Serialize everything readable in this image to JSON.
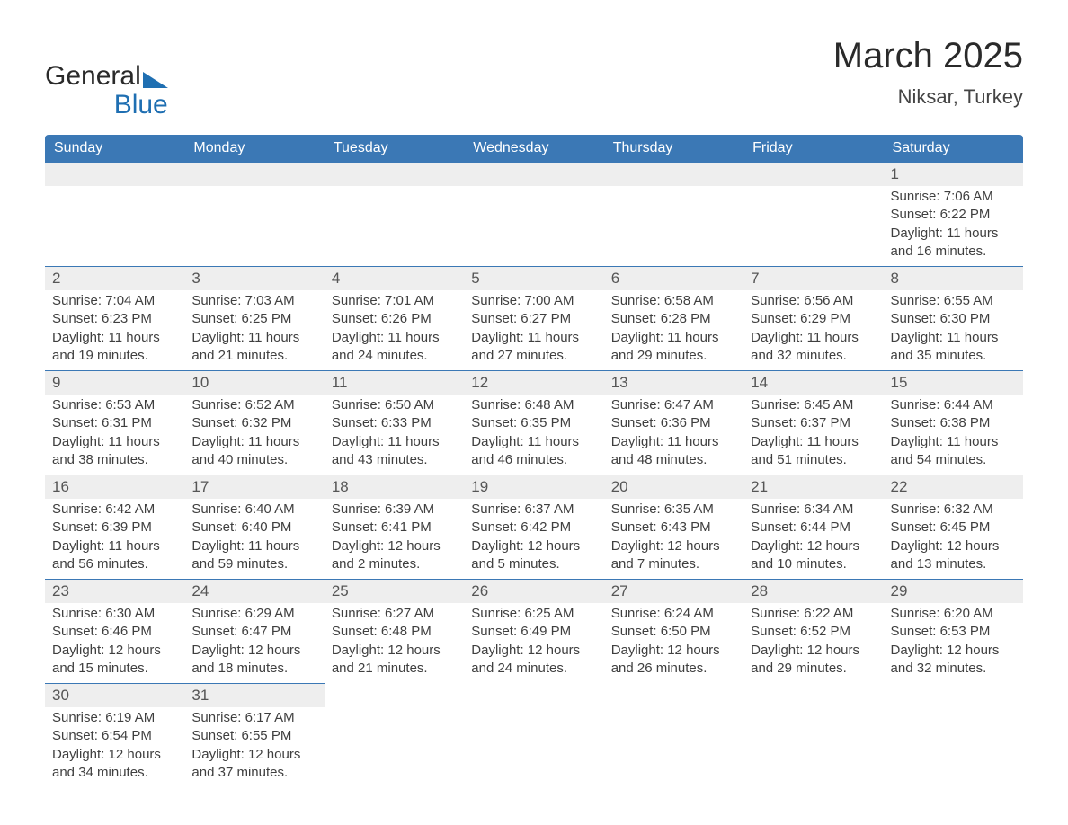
{
  "logo": {
    "word1": "General",
    "word2": "Blue",
    "tri_color": "#1f6fb2"
  },
  "title": "March 2025",
  "location": "Niksar, Turkey",
  "header_bg": "#3b78b5",
  "day_headers": [
    "Sunday",
    "Monday",
    "Tuesday",
    "Wednesday",
    "Thursday",
    "Friday",
    "Saturday"
  ],
  "weeks": [
    [
      null,
      null,
      null,
      null,
      null,
      null,
      {
        "n": "1",
        "sunrise": "7:06 AM",
        "sunset": "6:22 PM",
        "dl": "11 hours and 16 minutes."
      }
    ],
    [
      {
        "n": "2",
        "sunrise": "7:04 AM",
        "sunset": "6:23 PM",
        "dl": "11 hours and 19 minutes."
      },
      {
        "n": "3",
        "sunrise": "7:03 AM",
        "sunset": "6:25 PM",
        "dl": "11 hours and 21 minutes."
      },
      {
        "n": "4",
        "sunrise": "7:01 AM",
        "sunset": "6:26 PM",
        "dl": "11 hours and 24 minutes."
      },
      {
        "n": "5",
        "sunrise": "7:00 AM",
        "sunset": "6:27 PM",
        "dl": "11 hours and 27 minutes."
      },
      {
        "n": "6",
        "sunrise": "6:58 AM",
        "sunset": "6:28 PM",
        "dl": "11 hours and 29 minutes."
      },
      {
        "n": "7",
        "sunrise": "6:56 AM",
        "sunset": "6:29 PM",
        "dl": "11 hours and 32 minutes."
      },
      {
        "n": "8",
        "sunrise": "6:55 AM",
        "sunset": "6:30 PM",
        "dl": "11 hours and 35 minutes."
      }
    ],
    [
      {
        "n": "9",
        "sunrise": "6:53 AM",
        "sunset": "6:31 PM",
        "dl": "11 hours and 38 minutes."
      },
      {
        "n": "10",
        "sunrise": "6:52 AM",
        "sunset": "6:32 PM",
        "dl": "11 hours and 40 minutes."
      },
      {
        "n": "11",
        "sunrise": "6:50 AM",
        "sunset": "6:33 PM",
        "dl": "11 hours and 43 minutes."
      },
      {
        "n": "12",
        "sunrise": "6:48 AM",
        "sunset": "6:35 PM",
        "dl": "11 hours and 46 minutes."
      },
      {
        "n": "13",
        "sunrise": "6:47 AM",
        "sunset": "6:36 PM",
        "dl": "11 hours and 48 minutes."
      },
      {
        "n": "14",
        "sunrise": "6:45 AM",
        "sunset": "6:37 PM",
        "dl": "11 hours and 51 minutes."
      },
      {
        "n": "15",
        "sunrise": "6:44 AM",
        "sunset": "6:38 PM",
        "dl": "11 hours and 54 minutes."
      }
    ],
    [
      {
        "n": "16",
        "sunrise": "6:42 AM",
        "sunset": "6:39 PM",
        "dl": "11 hours and 56 minutes."
      },
      {
        "n": "17",
        "sunrise": "6:40 AM",
        "sunset": "6:40 PM",
        "dl": "11 hours and 59 minutes."
      },
      {
        "n": "18",
        "sunrise": "6:39 AM",
        "sunset": "6:41 PM",
        "dl": "12 hours and 2 minutes."
      },
      {
        "n": "19",
        "sunrise": "6:37 AM",
        "sunset": "6:42 PM",
        "dl": "12 hours and 5 minutes."
      },
      {
        "n": "20",
        "sunrise": "6:35 AM",
        "sunset": "6:43 PM",
        "dl": "12 hours and 7 minutes."
      },
      {
        "n": "21",
        "sunrise": "6:34 AM",
        "sunset": "6:44 PM",
        "dl": "12 hours and 10 minutes."
      },
      {
        "n": "22",
        "sunrise": "6:32 AM",
        "sunset": "6:45 PM",
        "dl": "12 hours and 13 minutes."
      }
    ],
    [
      {
        "n": "23",
        "sunrise": "6:30 AM",
        "sunset": "6:46 PM",
        "dl": "12 hours and 15 minutes."
      },
      {
        "n": "24",
        "sunrise": "6:29 AM",
        "sunset": "6:47 PM",
        "dl": "12 hours and 18 minutes."
      },
      {
        "n": "25",
        "sunrise": "6:27 AM",
        "sunset": "6:48 PM",
        "dl": "12 hours and 21 minutes."
      },
      {
        "n": "26",
        "sunrise": "6:25 AM",
        "sunset": "6:49 PM",
        "dl": "12 hours and 24 minutes."
      },
      {
        "n": "27",
        "sunrise": "6:24 AM",
        "sunset": "6:50 PM",
        "dl": "12 hours and 26 minutes."
      },
      {
        "n": "28",
        "sunrise": "6:22 AM",
        "sunset": "6:52 PM",
        "dl": "12 hours and 29 minutes."
      },
      {
        "n": "29",
        "sunrise": "6:20 AM",
        "sunset": "6:53 PM",
        "dl": "12 hours and 32 minutes."
      }
    ],
    [
      {
        "n": "30",
        "sunrise": "6:19 AM",
        "sunset": "6:54 PM",
        "dl": "12 hours and 34 minutes."
      },
      {
        "n": "31",
        "sunrise": "6:17 AM",
        "sunset": "6:55 PM",
        "dl": "12 hours and 37 minutes."
      },
      null,
      null,
      null,
      null,
      null
    ]
  ],
  "labels": {
    "sunrise": "Sunrise: ",
    "sunset": "Sunset: ",
    "daylight": "Daylight: "
  }
}
